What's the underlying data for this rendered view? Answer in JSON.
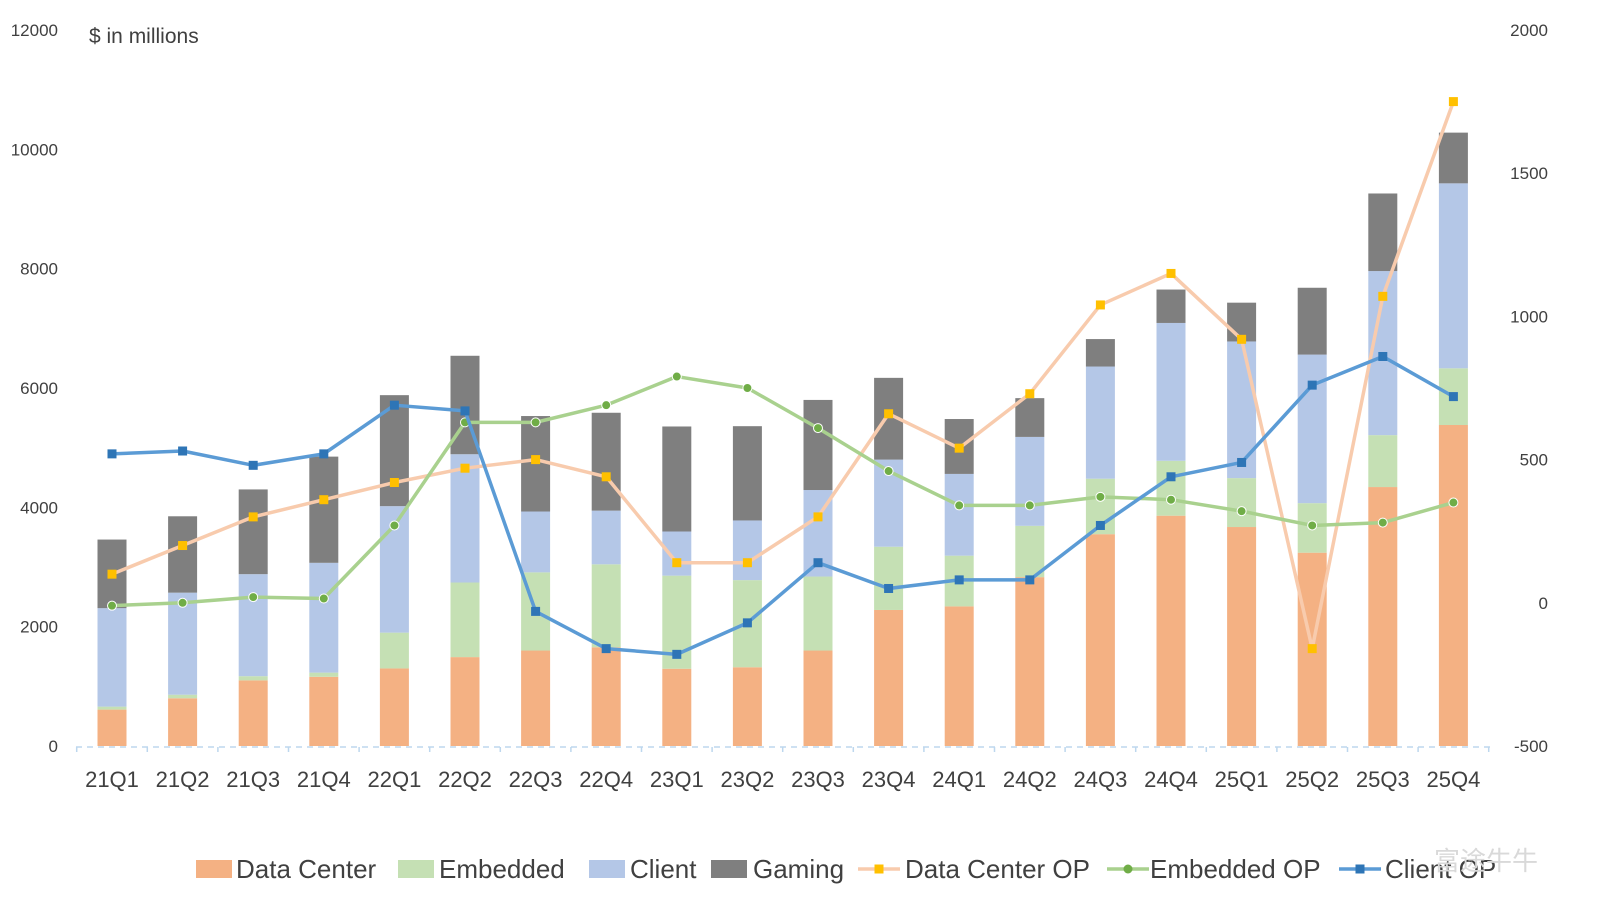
{
  "chart_data": {
    "type": "bar",
    "title": "",
    "units_label": "$ in millions",
    "categories": [
      "21Q1",
      "21Q2",
      "21Q3",
      "21Q4",
      "22Q1",
      "22Q2",
      "22Q3",
      "22Q4",
      "23Q1",
      "23Q2",
      "23Q3",
      "23Q4",
      "24Q1",
      "24Q2",
      "24Q3",
      "24Q4",
      "25Q1",
      "25Q2",
      "25Q3",
      "25Q4"
    ],
    "stacked": true,
    "y_left": {
      "ylim": [
        0,
        12000
      ],
      "ticks": [
        "0",
        "2000",
        "4000",
        "6000",
        "8000",
        "10000",
        "12000"
      ]
    },
    "y_right": {
      "ylim": [
        -500,
        2000
      ],
      "ticks": [
        "-500",
        "0",
        "500",
        "1000",
        "1500",
        "2000"
      ]
    },
    "series": [
      {
        "name": "Data Center",
        "kind": "bar",
        "axis": "left",
        "color": "#F4B183",
        "values": [
          610,
          800,
          1100,
          1160,
          1300,
          1490,
          1600,
          1655,
          1295,
          1320,
          1600,
          2280,
          2340,
          2830,
          3550,
          3860,
          3670,
          3240,
          4340,
          5380
        ]
      },
      {
        "name": "Embedded",
        "kind": "bar",
        "axis": "left",
        "color": "#C5E0B4",
        "values": [
          50,
          60,
          70,
          70,
          600,
          1250,
          1310,
          1390,
          1560,
          1460,
          1240,
          1060,
          850,
          860,
          930,
          920,
          820,
          830,
          870,
          950
        ]
      },
      {
        "name": "Client",
        "kind": "bar",
        "axis": "left",
        "color": "#B4C7E7",
        "values": [
          1650,
          1710,
          1710,
          1840,
          2120,
          2150,
          1020,
          900,
          740,
          1000,
          1450,
          1460,
          1370,
          1490,
          1880,
          2310,
          2290,
          2490,
          2750,
          3100
        ]
      },
      {
        "name": "Gaming",
        "kind": "bar",
        "axis": "left",
        "color": "#7F7F7F",
        "values": [
          1150,
          1280,
          1420,
          1780,
          1860,
          1650,
          1600,
          1640,
          1760,
          1580,
          1510,
          1370,
          920,
          650,
          460,
          560,
          650,
          1120,
          1300,
          850
        ]
      },
      {
        "name": "Data Center OP",
        "kind": "line",
        "axis": "right",
        "color": "#F8CBAD",
        "marker_color": "#FFC000",
        "marker": "square",
        "values": [
          100,
          200,
          300,
          360,
          420,
          470,
          500,
          440,
          140,
          140,
          300,
          660,
          540,
          730,
          1040,
          1150,
          920,
          -160,
          1070,
          1750
        ]
      },
      {
        "name": "Embedded OP",
        "kind": "line",
        "axis": "right",
        "color": "#A9D18E",
        "marker_color": "#70AD47",
        "marker": "circle",
        "values": [
          -10,
          0,
          20,
          15,
          270,
          630,
          630,
          690,
          790,
          750,
          610,
          460,
          340,
          340,
          370,
          360,
          320,
          270,
          280,
          350
        ]
      },
      {
        "name": "Client OP",
        "kind": "line",
        "axis": "right",
        "color": "#5B9BD5",
        "marker_color": "#2E75B6",
        "marker": "square",
        "values": [
          520,
          530,
          480,
          520,
          690,
          670,
          -30,
          -160,
          -180,
          -70,
          140,
          50,
          80,
          80,
          270,
          440,
          490,
          760,
          860,
          720
        ]
      }
    ],
    "legend_position": "bottom",
    "grid": false
  },
  "watermark": "富途牛牛"
}
